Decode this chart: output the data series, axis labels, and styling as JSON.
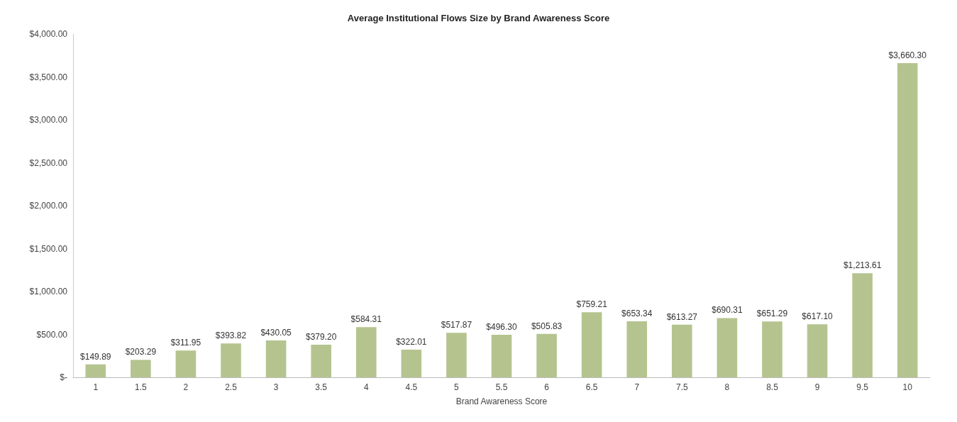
{
  "chart_data": {
    "type": "bar",
    "title": "Average Institutional Flows Size by Brand Awareness Score",
    "xlabel": "Brand Awareness Score",
    "categories": [
      "1",
      "1.5",
      "2",
      "2.5",
      "3",
      "3.5",
      "4",
      "4.5",
      "5",
      "5.5",
      "6",
      "6.5",
      "7",
      "7.5",
      "8",
      "8.5",
      "9",
      "9.5",
      "10"
    ],
    "values": [
      149.89,
      203.29,
      311.95,
      393.82,
      430.05,
      379.2,
      584.31,
      322.01,
      517.87,
      496.3,
      505.83,
      759.21,
      653.34,
      613.27,
      690.31,
      651.29,
      617.1,
      1213.61,
      3660.3
    ],
    "value_labels": [
      "$149.89",
      "$203.29",
      "$311.95",
      "$393.82",
      "$430.05",
      "$379.20",
      "$584.31",
      "$322.01",
      "$517.87",
      "$496.30",
      "$505.83",
      "$759.21",
      "$653.34",
      "$613.27",
      "$690.31",
      "$651.29",
      "$617.10",
      "$1,213.61",
      "$3,660.30"
    ],
    "color": "#b5c48f",
    "ylim": [
      0,
      4000
    ],
    "yticks": [
      {
        "value": 0,
        "label": "$-"
      },
      {
        "value": 500,
        "label": "$500.00"
      },
      {
        "value": 1000,
        "label": "$1,000.00"
      },
      {
        "value": 1500,
        "label": "$1,500.00"
      },
      {
        "value": 2000,
        "label": "$2,000.00"
      },
      {
        "value": 2500,
        "label": "$2,500.00"
      },
      {
        "value": 3000,
        "label": "$3,000.00"
      },
      {
        "value": 3500,
        "label": "$3,500.00"
      },
      {
        "value": 4000,
        "label": "$4,000.00"
      }
    ],
    "grid": false
  }
}
